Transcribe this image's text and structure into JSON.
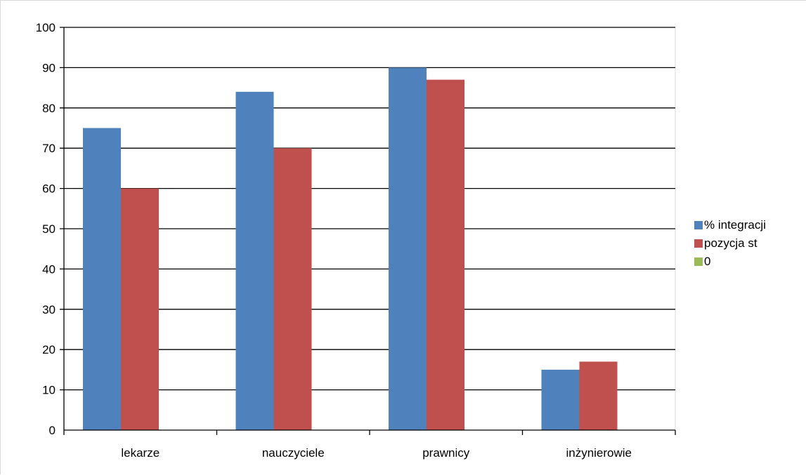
{
  "chart_data": {
    "type": "bar",
    "title": "",
    "xlabel": "",
    "ylabel": "",
    "categories": [
      "lekarze",
      "nauczyciele",
      "prawnicy",
      "inżynierowie"
    ],
    "series": [
      {
        "name": "% integracji",
        "values": [
          75,
          84,
          90,
          15
        ],
        "color": "#4f81bd"
      },
      {
        "name": "pozycja st",
        "values": [
          60,
          70,
          87,
          17
        ],
        "color": "#c0504d"
      },
      {
        "name": "0",
        "values": [
          0,
          0,
          0,
          0
        ],
        "color": "#9bbb59"
      }
    ],
    "ylim": [
      0,
      100
    ],
    "yticks": [
      0,
      10,
      20,
      30,
      40,
      50,
      60,
      70,
      80,
      90,
      100
    ],
    "grid": true,
    "legend_position": "right"
  }
}
